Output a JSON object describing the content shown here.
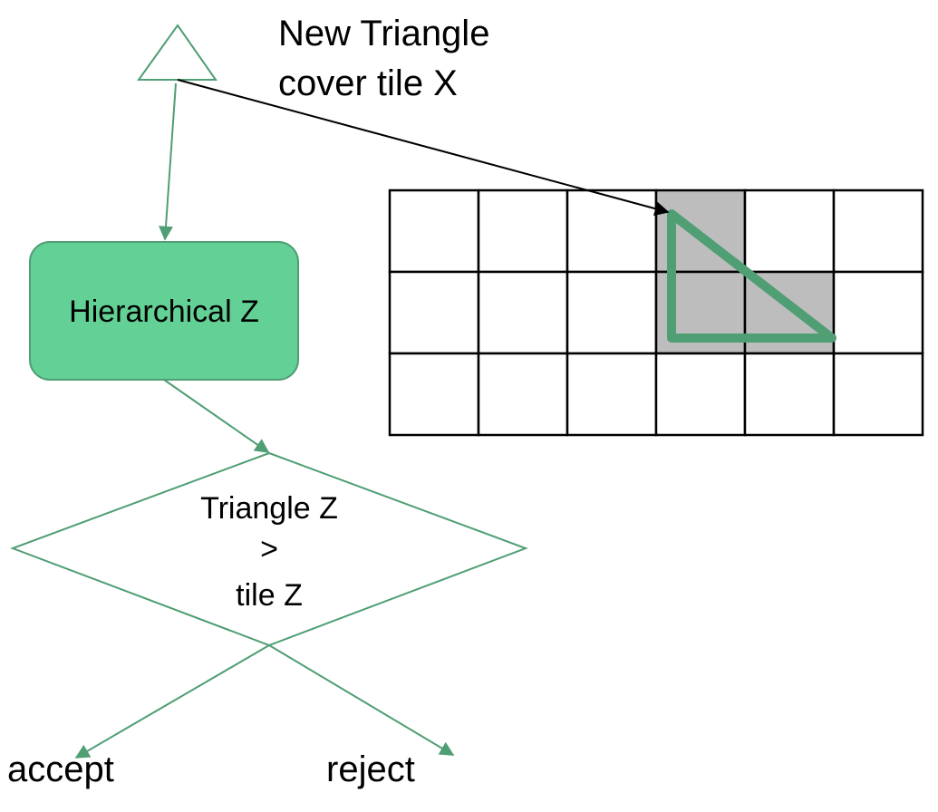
{
  "title": {
    "line1": "New Triangle",
    "line2": "cover tile X"
  },
  "process_box": {
    "label": "Hierarchical Z"
  },
  "decision": {
    "line1": "Triangle Z",
    "line2": ">",
    "line3": "tile Z"
  },
  "outcomes": {
    "accept": "accept",
    "reject": "reject"
  },
  "tile_grid": {
    "rows": 3,
    "cols": 6,
    "covered_tiles": [
      {
        "row": 0,
        "col": 3
      },
      {
        "row": 1,
        "col": 3
      },
      {
        "row": 1,
        "col": 4
      }
    ]
  },
  "colors": {
    "accent_green": "#4f9e74",
    "box_fill": "#63d195",
    "shaded_tile": "#bdbdbd",
    "grid_line": "#000000"
  }
}
